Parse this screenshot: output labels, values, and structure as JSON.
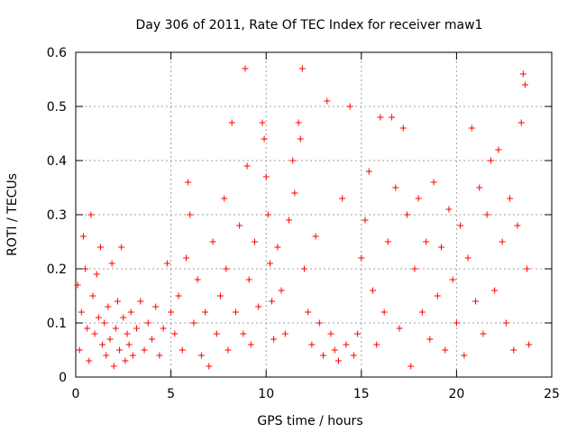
{
  "chart_data": {
    "type": "scatter",
    "title": "Day 306 of 2011, Rate Of TEC Index for receiver maw1",
    "xlabel": "GPS time / hours",
    "ylabel": "ROTI / TECUs",
    "xlim": [
      0,
      25
    ],
    "ylim": [
      0,
      0.6
    ],
    "x_ticks": [
      0,
      5,
      10,
      15,
      20,
      25
    ],
    "x_tick_labels": [
      "0",
      "5",
      "10",
      "15",
      "20",
      "25"
    ],
    "y_ticks": [
      0,
      0.1,
      0.2,
      0.3,
      0.4,
      0.5,
      0.6
    ],
    "y_tick_labels": [
      "0",
      "0.1",
      "0.2",
      "0.3",
      "0.4",
      "0.5",
      "0.6"
    ],
    "grid": true,
    "legend": "none",
    "marker": "+",
    "series": [
      {
        "color": "#ff0000",
        "points": [
          [
            0.1,
            0.17
          ],
          [
            0.2,
            0.05
          ],
          [
            0.3,
            0.12
          ],
          [
            0.4,
            0.26
          ],
          [
            0.5,
            0.2
          ],
          [
            0.6,
            0.09
          ],
          [
            0.7,
            0.03
          ],
          [
            0.8,
            0.3
          ],
          [
            0.9,
            0.15
          ],
          [
            1.0,
            0.08
          ],
          [
            1.1,
            0.19
          ],
          [
            1.2,
            0.11
          ],
          [
            1.3,
            0.24
          ],
          [
            1.4,
            0.06
          ],
          [
            1.5,
            0.1
          ],
          [
            1.6,
            0.04
          ],
          [
            1.7,
            0.13
          ],
          [
            1.8,
            0.07
          ],
          [
            1.9,
            0.21
          ],
          [
            2.0,
            0.02
          ],
          [
            2.1,
            0.09
          ],
          [
            2.2,
            0.14
          ],
          [
            2.3,
            0.05
          ],
          [
            2.4,
            0.24
          ],
          [
            2.5,
            0.11
          ],
          [
            2.6,
            0.03
          ],
          [
            2.7,
            0.08
          ],
          [
            2.8,
            0.06
          ],
          [
            2.9,
            0.12
          ],
          [
            3.0,
            0.04
          ],
          [
            3.2,
            0.09
          ],
          [
            3.4,
            0.14
          ],
          [
            3.6,
            0.05
          ],
          [
            3.8,
            0.1
          ],
          [
            4.0,
            0.07
          ],
          [
            4.2,
            0.13
          ],
          [
            4.4,
            0.04
          ],
          [
            4.6,
            0.09
          ],
          [
            4.8,
            0.21
          ],
          [
            5.0,
            0.12
          ],
          [
            5.2,
            0.08
          ],
          [
            5.4,
            0.15
          ],
          [
            5.6,
            0.05
          ],
          [
            5.8,
            0.22
          ],
          [
            5.9,
            0.36
          ],
          [
            6.0,
            0.3
          ],
          [
            6.2,
            0.1
          ],
          [
            6.4,
            0.18
          ],
          [
            6.6,
            0.04
          ],
          [
            6.8,
            0.12
          ],
          [
            7.0,
            0.02
          ],
          [
            7.2,
            0.25
          ],
          [
            7.4,
            0.08
          ],
          [
            7.6,
            0.15
          ],
          [
            7.8,
            0.33
          ],
          [
            7.9,
            0.2
          ],
          [
            8.0,
            0.05
          ],
          [
            8.2,
            0.47
          ],
          [
            8.4,
            0.12
          ],
          [
            8.6,
            0.28
          ],
          [
            8.8,
            0.08
          ],
          [
            8.9,
            0.57
          ],
          [
            9.0,
            0.39
          ],
          [
            9.1,
            0.18
          ],
          [
            9.2,
            0.06
          ],
          [
            9.4,
            0.25
          ],
          [
            9.6,
            0.13
          ],
          [
            9.8,
            0.47
          ],
          [
            9.9,
            0.44
          ],
          [
            10.0,
            0.37
          ],
          [
            10.1,
            0.3
          ],
          [
            10.2,
            0.21
          ],
          [
            10.3,
            0.14
          ],
          [
            10.4,
            0.07
          ],
          [
            10.6,
            0.24
          ],
          [
            10.8,
            0.16
          ],
          [
            11.0,
            0.08
          ],
          [
            11.2,
            0.29
          ],
          [
            11.4,
            0.4
          ],
          [
            11.5,
            0.34
          ],
          [
            11.7,
            0.47
          ],
          [
            11.8,
            0.44
          ],
          [
            11.9,
            0.57
          ],
          [
            12.0,
            0.2
          ],
          [
            12.2,
            0.12
          ],
          [
            12.4,
            0.06
          ],
          [
            12.6,
            0.26
          ],
          [
            12.8,
            0.1
          ],
          [
            13.0,
            0.04
          ],
          [
            13.2,
            0.51
          ],
          [
            13.4,
            0.08
          ],
          [
            13.6,
            0.05
          ],
          [
            13.8,
            0.03
          ],
          [
            14.0,
            0.33
          ],
          [
            14.2,
            0.06
          ],
          [
            14.4,
            0.5
          ],
          [
            14.6,
            0.04
          ],
          [
            14.8,
            0.08
          ],
          [
            15.0,
            0.22
          ],
          [
            15.2,
            0.29
          ],
          [
            15.4,
            0.38
          ],
          [
            15.6,
            0.16
          ],
          [
            15.8,
            0.06
          ],
          [
            16.0,
            0.48
          ],
          [
            16.2,
            0.12
          ],
          [
            16.4,
            0.25
          ],
          [
            16.6,
            0.48
          ],
          [
            16.8,
            0.35
          ],
          [
            17.0,
            0.09
          ],
          [
            17.2,
            0.46
          ],
          [
            17.4,
            0.3
          ],
          [
            17.6,
            0.02
          ],
          [
            17.8,
            0.2
          ],
          [
            18.0,
            0.33
          ],
          [
            18.2,
            0.12
          ],
          [
            18.4,
            0.25
          ],
          [
            18.6,
            0.07
          ],
          [
            18.8,
            0.36
          ],
          [
            19.0,
            0.15
          ],
          [
            19.2,
            0.24
          ],
          [
            19.4,
            0.05
          ],
          [
            19.6,
            0.31
          ],
          [
            19.8,
            0.18
          ],
          [
            20.0,
            0.1
          ],
          [
            20.2,
            0.28
          ],
          [
            20.4,
            0.04
          ],
          [
            20.6,
            0.22
          ],
          [
            20.8,
            0.46
          ],
          [
            21.0,
            0.14
          ],
          [
            21.2,
            0.35
          ],
          [
            21.4,
            0.08
          ],
          [
            21.6,
            0.3
          ],
          [
            21.8,
            0.4
          ],
          [
            22.0,
            0.16
          ],
          [
            22.2,
            0.42
          ],
          [
            22.4,
            0.25
          ],
          [
            22.6,
            0.1
          ],
          [
            22.8,
            0.33
          ],
          [
            23.0,
            0.05
          ],
          [
            23.2,
            0.28
          ],
          [
            23.4,
            0.47
          ],
          [
            23.5,
            0.56
          ],
          [
            23.6,
            0.54
          ],
          [
            23.7,
            0.2
          ],
          [
            23.8,
            0.06
          ]
        ]
      }
    ]
  }
}
